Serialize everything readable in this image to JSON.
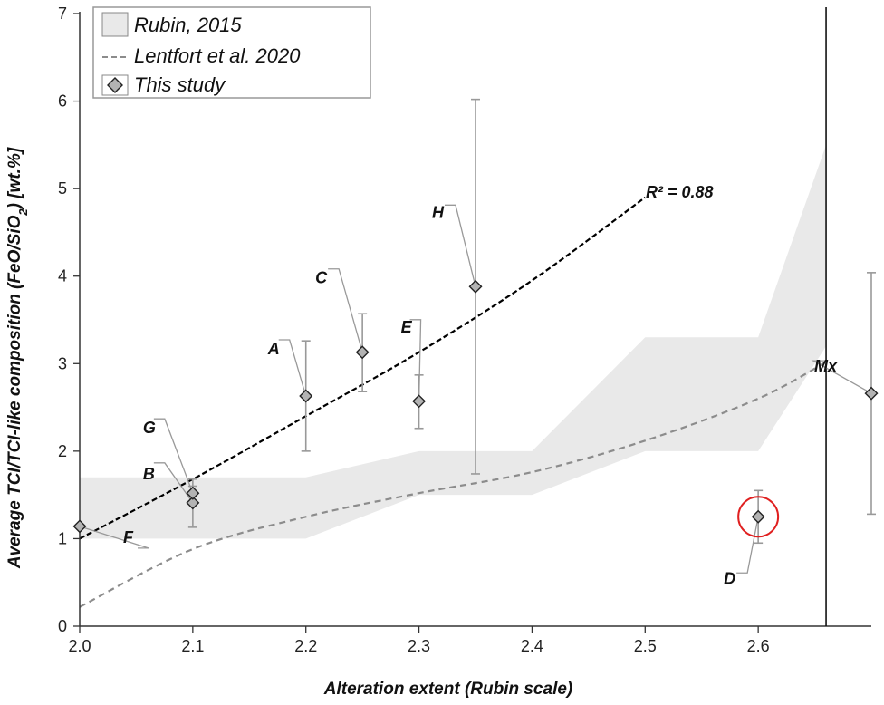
{
  "chart_data": {
    "type": "scatter",
    "xlabel": "Alteration extent (Rubin scale)",
    "ylabel_main": "Average TCI/TCI-like composition (FeO/SiO",
    "ylabel_sub": "2",
    "ylabel_end": ") [wt.%]",
    "xlim": [
      2.0,
      2.7
    ],
    "ylim": [
      0,
      7
    ],
    "x_ticks": [
      "2.0",
      "2.1",
      "2.2",
      "2.3",
      "2.4",
      "2.5",
      "2.6"
    ],
    "x_tick_values": [
      2.0,
      2.1,
      2.2,
      2.3,
      2.4,
      2.5,
      2.6
    ],
    "y_ticks": [
      "0",
      "1",
      "2",
      "3",
      "4",
      "5",
      "6",
      "7"
    ],
    "y_tick_values": [
      0,
      1,
      2,
      3,
      4,
      5,
      6,
      7
    ],
    "grid": false,
    "legend_position": "top-left",
    "legend": [
      {
        "name": "Rubin, 2015",
        "symbol": "band"
      },
      {
        "name": "Lentfort et al. 2020",
        "symbol": "dashed-line"
      },
      {
        "name": "This study",
        "symbol": "diamond"
      }
    ],
    "series": [
      {
        "name": "This study",
        "points": [
          {
            "label": "F",
            "x": 2.0,
            "y": 1.14,
            "err_low": null,
            "err_high": null
          },
          {
            "label": "B",
            "x": 2.1,
            "y": 1.41,
            "err_low": 1.13,
            "err_high": 1.6
          },
          {
            "label": "G",
            "x": 2.1,
            "y": 1.52,
            "err_low": null,
            "err_high": 1.68
          },
          {
            "label": "A",
            "x": 2.2,
            "y": 2.63,
            "err_low": 2.0,
            "err_high": 3.26
          },
          {
            "label": "C",
            "x": 2.25,
            "y": 3.13,
            "err_low": 2.68,
            "err_high": 3.57
          },
          {
            "label": "E",
            "x": 2.3,
            "y": 2.57,
            "err_low": 2.26,
            "err_high": 2.87
          },
          {
            "label": "H",
            "x": 2.35,
            "y": 3.88,
            "err_low": 1.74,
            "err_high": 6.02
          },
          {
            "label": "D",
            "x": 2.6,
            "y": 1.25,
            "err_low": 0.95,
            "err_high": 1.55
          }
        ]
      },
      {
        "name": "Mx",
        "points": [
          {
            "label": "Mx",
            "x": 2.7,
            "y": 2.66,
            "err_low": 1.28,
            "err_high": 4.04
          }
        ]
      }
    ],
    "rubin_band": {
      "upper": [
        [
          2.0,
          1.7
        ],
        [
          2.2,
          1.7
        ],
        [
          2.3,
          2.0
        ],
        [
          2.4,
          2.0
        ],
        [
          2.5,
          3.3
        ],
        [
          2.6,
          3.3
        ],
        [
          2.66,
          5.5
        ]
      ],
      "lower": [
        [
          2.0,
          1.0
        ],
        [
          2.2,
          1.0
        ],
        [
          2.3,
          1.5
        ],
        [
          2.4,
          1.5
        ],
        [
          2.5,
          2.0
        ],
        [
          2.6,
          2.0
        ],
        [
          2.66,
          3.2
        ]
      ]
    },
    "lentfort_curve": [
      [
        2.0,
        0.22
      ],
      [
        2.1,
        0.88
      ],
      [
        2.2,
        1.25
      ],
      [
        2.3,
        1.52
      ],
      [
        2.4,
        1.76
      ],
      [
        2.5,
        2.12
      ],
      [
        2.6,
        2.6
      ],
      [
        2.66,
        3.02
      ]
    ],
    "fit_line": {
      "label": "R² = 0.88",
      "points": [
        [
          2.0,
          1.0
        ],
        [
          2.1,
          1.68
        ],
        [
          2.2,
          2.4
        ],
        [
          2.3,
          3.13
        ],
        [
          2.4,
          3.95
        ],
        [
          2.5,
          4.9
        ]
      ]
    },
    "divider_x": 2.66,
    "highlight": {
      "label": "D",
      "x": 2.6,
      "y": 1.25,
      "color": "#e02020"
    },
    "colors": {
      "band": "#e9e9e9",
      "curve": "#8c8c8c",
      "fit": "#000000",
      "marker_fill": "#b3b3b3",
      "errbar": "#999999",
      "leader": "#999999"
    }
  }
}
